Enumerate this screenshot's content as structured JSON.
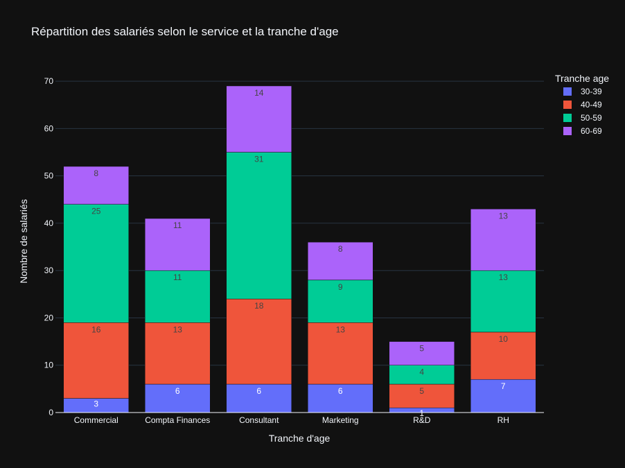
{
  "chart_data": {
    "type": "bar",
    "stacked": true,
    "title": "Répartition des salariés selon le service et la tranche d'age",
    "xlabel": "Tranche d'age",
    "ylabel": "Nombre de salariés",
    "ylim": [
      0,
      75
    ],
    "yticks": [
      0,
      10,
      20,
      30,
      40,
      50,
      60,
      70
    ],
    "grid": true,
    "legend_title": "Tranche age",
    "legend_position": "top-right",
    "categories": [
      "Commercial",
      "Compta Finances",
      "Consultant",
      "Marketing",
      "R&D",
      "RH"
    ],
    "series": [
      {
        "name": "30-39",
        "color": "#636efa",
        "values": [
          3,
          6,
          6,
          6,
          1,
          7
        ]
      },
      {
        "name": "40-49",
        "color": "#ef553b",
        "values": [
          16,
          13,
          18,
          13,
          5,
          10
        ]
      },
      {
        "name": "50-59",
        "color": "#00cc96",
        "values": [
          25,
          11,
          31,
          9,
          4,
          13
        ]
      },
      {
        "name": "60-69",
        "color": "#ab63fa",
        "values": [
          8,
          11,
          14,
          8,
          5,
          13
        ]
      }
    ]
  },
  "colors": {
    "background": "#111111",
    "grid": "#283442",
    "text": "#f2f5fa"
  }
}
